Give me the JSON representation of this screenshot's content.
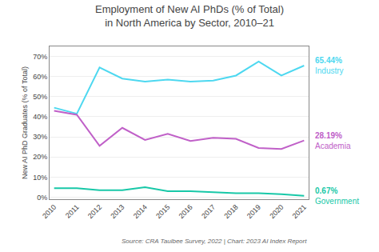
{
  "chart_data": {
    "type": "line",
    "title": "Employment of New AI PhDs (% of Total)",
    "subtitle": "in North America by Sector, 2010–21",
    "ylabel": "New AI PhD Graduates (% of Total)",
    "source": "Source: CRA Taulbee Survey, 2022 | Chart: 2023 AI Index Report",
    "x": [
      2010,
      2011,
      2012,
      2013,
      2014,
      2015,
      2016,
      2017,
      2018,
      2019,
      2020,
      2021
    ],
    "series": [
      {
        "name": "Industry",
        "color": "#4dd8f0",
        "values": [
          44.5,
          41.5,
          64.5,
          59.0,
          57.5,
          58.5,
          57.5,
          58.0,
          60.5,
          67.5,
          60.5,
          65.44
        ],
        "value_labels": [
          null,
          null,
          null,
          null,
          null,
          null,
          null,
          null,
          null,
          null,
          null,
          "65.44%"
        ]
      },
      {
        "name": "Academia",
        "color": "#c060c8",
        "values": [
          43.0,
          41.0,
          25.5,
          34.5,
          28.5,
          31.5,
          28.0,
          29.5,
          29.0,
          24.5,
          24.0,
          28.19
        ],
        "value_labels": [
          null,
          null,
          null,
          null,
          null,
          null,
          null,
          null,
          null,
          null,
          null,
          "28.19%"
        ]
      },
      {
        "name": "Government",
        "color": "#18c8a8",
        "values": [
          4.5,
          4.5,
          3.5,
          3.5,
          5.0,
          3.0,
          3.0,
          2.5,
          2.0,
          2.0,
          1.5,
          0.67
        ],
        "value_labels": [
          null,
          null,
          null,
          null,
          null,
          null,
          null,
          null,
          null,
          null,
          null,
          "0.67%"
        ]
      }
    ],
    "xlim": [
      2009.8,
      2021.2
    ],
    "xticks": [
      2010,
      2011,
      2012,
      2013,
      2014,
      2015,
      2016,
      2017,
      2018,
      2019,
      2020,
      2021
    ],
    "ylim": [
      -1,
      75
    ],
    "yticks": [
      {
        "value": 0,
        "label": "0%"
      },
      {
        "value": 10,
        "label": "10%"
      },
      {
        "value": 20,
        "label": "20%"
      },
      {
        "value": 30,
        "label": "30%"
      },
      {
        "value": 40,
        "label": "40%"
      },
      {
        "value": 50,
        "label": "50%"
      },
      {
        "value": 60,
        "label": "60%"
      },
      {
        "value": 70,
        "label": "70%"
      }
    ],
    "grid": "y"
  }
}
